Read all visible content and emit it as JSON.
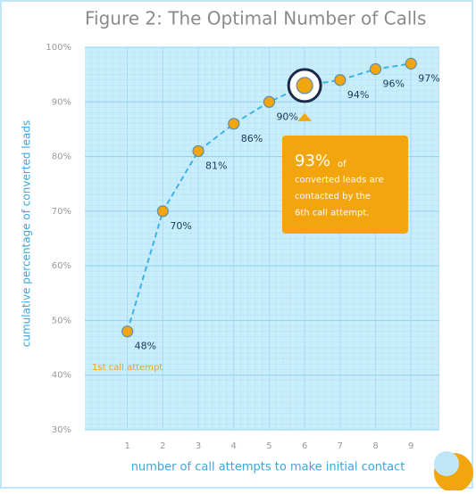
{
  "chart_data": {
    "type": "line",
    "title": "Figure 2: The Optimal Number of Calls",
    "x_label": "number of call attempts to make initial contact",
    "y_label": "cumulative percentage of converted leads",
    "x": [
      1,
      2,
      3,
      4,
      5,
      6,
      7,
      8,
      9
    ],
    "values": [
      48,
      70,
      81,
      86,
      90,
      93,
      94,
      96,
      97
    ],
    "value_labels": [
      "48%",
      "70%",
      "81%",
      "86%",
      "90%",
      "93%",
      "94%",
      "96%",
      "97%"
    ],
    "color": "#f2a50c",
    "line_color": "#3cb4e6",
    "xlim": [
      -0.2,
      9.8
    ],
    "xticks": [
      1,
      2,
      3,
      4,
      5,
      6,
      7,
      8,
      9
    ],
    "ylim": [
      30,
      100
    ],
    "yticks": [
      {
        "value": 30,
        "label": "30%"
      },
      {
        "value": 40,
        "label": "40%"
      },
      {
        "value": 50,
        "label": "50%"
      },
      {
        "value": 60,
        "label": "60%"
      },
      {
        "value": 70,
        "label": "70%"
      },
      {
        "value": 80,
        "label": "80%"
      },
      {
        "value": 90,
        "label": "90%"
      },
      {
        "value": 100,
        "label": "100%"
      }
    ],
    "grid": true,
    "highlight_x": 6,
    "annotations": [
      {
        "text": "1st call attempt"
      },
      {
        "headline": "93%",
        "lines": [
          "of",
          "converted leads are",
          "contacted by the",
          "6th  call attempt."
        ]
      }
    ]
  }
}
